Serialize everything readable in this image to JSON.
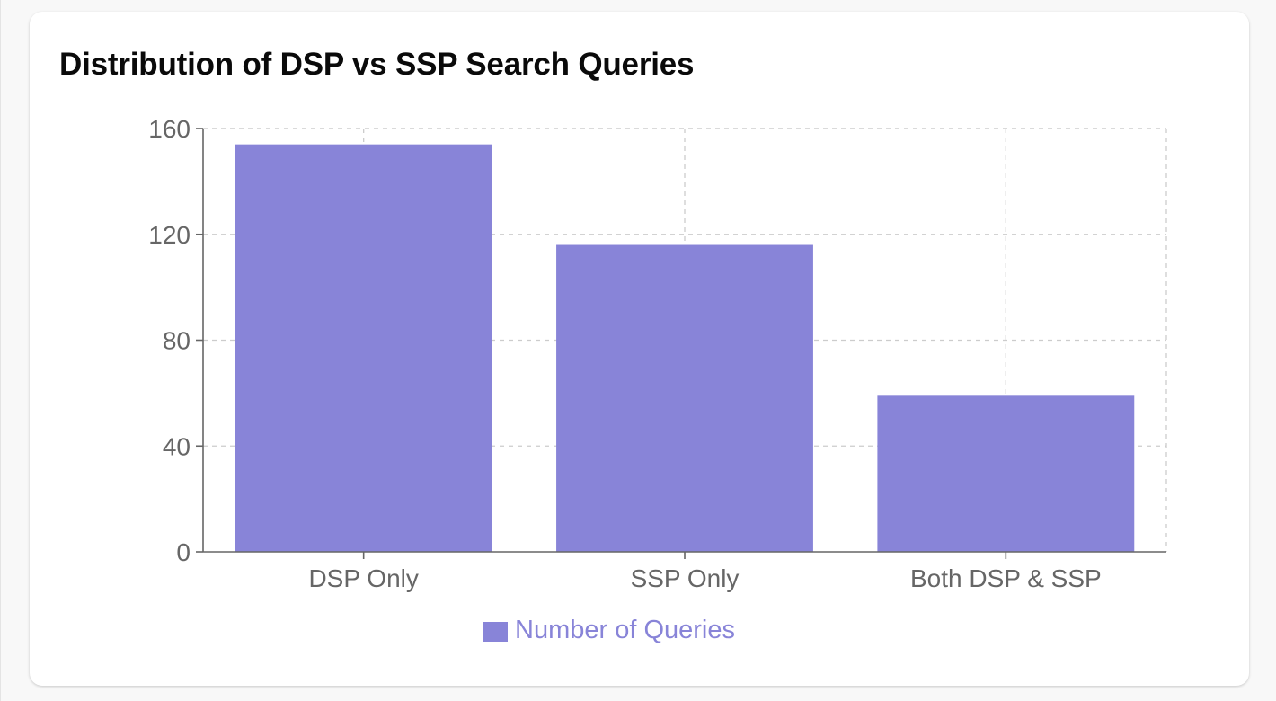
{
  "chart_data": {
    "type": "bar",
    "title": "Distribution of DSP vs SSP Search Queries",
    "categories": [
      "DSP Only",
      "SSP Only",
      "Both DSP & SSP"
    ],
    "series": [
      {
        "name": "Number of Queries",
        "values": [
          154,
          116,
          59
        ],
        "color": "#8884d8"
      }
    ],
    "ylim": [
      0,
      160
    ],
    "yticks": [
      "0",
      "40",
      "80",
      "120",
      "160"
    ],
    "grid": true,
    "legend": "bottom-center"
  }
}
